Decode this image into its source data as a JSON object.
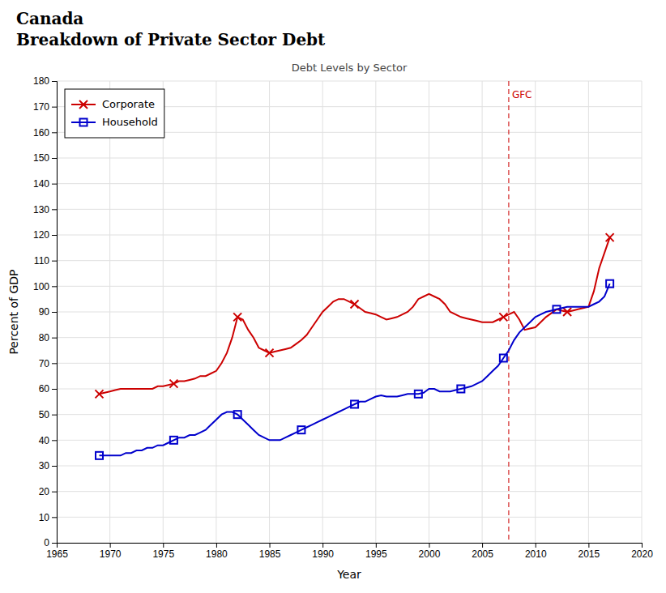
{
  "chart_data": {
    "type": "line",
    "title": [
      "Canada",
      "Breakdown of Private Sector Debt"
    ],
    "subtitle": "Debt Levels by Sector",
    "x_label": "Year",
    "y_label": "Percent of GDP",
    "xlim": [
      1965,
      2020
    ],
    "ylim": [
      0,
      180
    ],
    "xticks": [
      1965,
      1970,
      1975,
      1980,
      1985,
      1990,
      1995,
      2000,
      2005,
      2010,
      2015,
      2020
    ],
    "yticks": [
      0,
      10,
      20,
      30,
      40,
      50,
      60,
      70,
      80,
      90,
      100,
      110,
      120,
      130,
      140,
      150,
      160,
      170,
      180
    ],
    "grid": true,
    "legend": "top-left",
    "x": [
      1969.0,
      1969.5,
      1970.0,
      1970.5,
      1971.0,
      1971.5,
      1972.0,
      1972.5,
      1973.0,
      1973.5,
      1974.0,
      1974.5,
      1975.0,
      1975.5,
      1976.0,
      1976.5,
      1977.0,
      1977.5,
      1978.0,
      1978.5,
      1979.0,
      1979.5,
      1980.0,
      1980.5,
      1981.0,
      1981.5,
      1982.0,
      1982.5,
      1983.0,
      1983.5,
      1984.0,
      1984.5,
      1985.0,
      1985.5,
      1986.0,
      1986.5,
      1987.0,
      1987.5,
      1988.0,
      1988.5,
      1989.0,
      1989.5,
      1990.0,
      1990.5,
      1991.0,
      1991.5,
      1992.0,
      1992.5,
      1993.0,
      1993.5,
      1994.0,
      1994.5,
      1995.0,
      1995.5,
      1996.0,
      1996.5,
      1997.0,
      1997.5,
      1998.0,
      1998.5,
      1999.0,
      1999.5,
      2000.0,
      2000.5,
      2001.0,
      2001.5,
      2002.0,
      2002.5,
      2003.0,
      2003.5,
      2004.0,
      2004.5,
      2005.0,
      2005.5,
      2006.0,
      2006.5,
      2007.0,
      2007.5,
      2008.0,
      2008.5,
      2009.0,
      2009.5,
      2010.0,
      2010.5,
      2011.0,
      2011.5,
      2012.0,
      2012.5,
      2013.0,
      2013.5,
      2014.0,
      2014.5,
      2015.0,
      2015.5,
      2016.0,
      2016.5,
      2017.0
    ],
    "series": [
      {
        "name": "Corporate",
        "color": "#cc0000",
        "marker": "x",
        "marker_at": [
          1969,
          1976,
          1982,
          1985,
          1993,
          2007,
          2013,
          2017
        ],
        "values": [
          58,
          58.5,
          59,
          59.5,
          60,
          60,
          60,
          60,
          60,
          60,
          60,
          61,
          61,
          61.5,
          62,
          63,
          63,
          63.5,
          64,
          65,
          65,
          66,
          67,
          70,
          74,
          80,
          88,
          87,
          83,
          80,
          76,
          75,
          74,
          74.5,
          75,
          75.5,
          76,
          77.5,
          79,
          81,
          84,
          87,
          90,
          92,
          94,
          95,
          95,
          94,
          93,
          91.5,
          90,
          89.5,
          89,
          88,
          87,
          87.5,
          88,
          89,
          90,
          92,
          95,
          96,
          97,
          96,
          95,
          93,
          90,
          89,
          88,
          87.5,
          87,
          86.5,
          86,
          86,
          86,
          87,
          88,
          89,
          90,
          87,
          83,
          83.5,
          84,
          86,
          88,
          89.5,
          91,
          90.5,
          90,
          90.5,
          91,
          91.5,
          92,
          98,
          107,
          113,
          119
        ]
      },
      {
        "name": "Household",
        "color": "#0000cc",
        "marker": "square",
        "marker_at": [
          1969,
          1976,
          1982,
          1988,
          1993,
          1999,
          2003,
          2007,
          2012,
          2017
        ],
        "values": [
          34,
          34,
          34,
          34,
          34,
          35,
          35,
          36,
          36,
          37,
          37,
          38,
          38,
          39,
          40,
          41,
          41,
          42,
          42,
          43,
          44,
          46,
          48,
          50,
          51,
          51,
          50,
          48,
          46,
          44,
          42,
          41,
          40,
          40,
          40,
          41,
          42,
          43,
          44,
          45,
          46,
          47,
          48,
          49,
          50,
          51,
          52,
          53,
          54,
          55,
          55,
          56,
          57,
          57.5,
          57,
          57,
          57,
          57.5,
          58,
          58,
          58,
          58.5,
          60,
          60,
          59,
          59,
          59,
          59.5,
          60,
          60.5,
          61,
          62,
          63,
          65,
          67,
          69,
          72,
          75,
          79,
          82,
          84,
          86,
          88,
          89,
          90,
          90.5,
          91,
          91.5,
          92,
          92,
          92,
          92,
          92,
          93,
          94,
          96,
          101
        ]
      }
    ],
    "annotations": [
      {
        "text": "GFC",
        "x": 2007.5,
        "y": 176,
        "color": "#cc0000",
        "line_style": "dashed"
      }
    ]
  }
}
